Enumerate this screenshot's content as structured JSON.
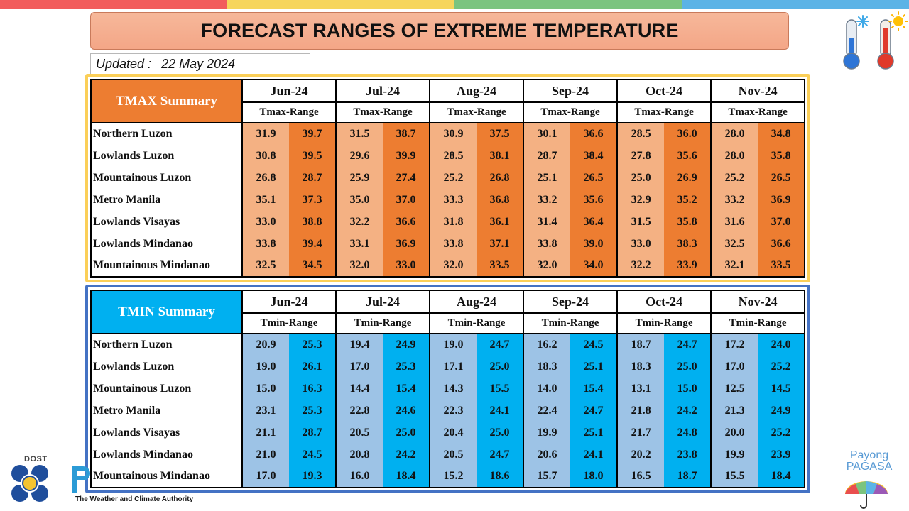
{
  "topbar_colors": [
    "#f25c5c",
    "#f6d55c",
    "#7bc47f",
    "#5bb3e6"
  ],
  "title": "FORECAST RANGES OF EXTREME TEMPERATURE",
  "updated": {
    "label": "Updated :",
    "date": "22 May 2024"
  },
  "months": [
    "Jun-24",
    "Jul-24",
    "Aug-24",
    "Sep-24",
    "Oct-24",
    "Nov-24"
  ],
  "regions": [
    "Northern Luzon",
    "Lowlands Luzon",
    "Mountainous Luzon",
    "Metro Manila",
    "Lowlands Visayas",
    "Lowlands Mindanao",
    "Mountainous Mindanao"
  ],
  "tmax": {
    "summary_label": "TMAX Summary",
    "sub_label": "Tmax-Range",
    "colors": {
      "header": "#ed7d31",
      "low": "#f4b183",
      "high": "#ed7d31",
      "border": "#fbcf58"
    },
    "rows": [
      [
        [
          "31.9",
          "39.7"
        ],
        [
          "31.5",
          "38.7"
        ],
        [
          "30.9",
          "37.5"
        ],
        [
          "30.1",
          "36.6"
        ],
        [
          "28.5",
          "36.0"
        ],
        [
          "28.0",
          "34.8"
        ]
      ],
      [
        [
          "30.8",
          "39.5"
        ],
        [
          "29.6",
          "39.9"
        ],
        [
          "28.5",
          "38.1"
        ],
        [
          "28.7",
          "38.4"
        ],
        [
          "27.8",
          "35.6"
        ],
        [
          "28.0",
          "35.8"
        ]
      ],
      [
        [
          "26.8",
          "28.7"
        ],
        [
          "25.9",
          "27.4"
        ],
        [
          "25.2",
          "26.8"
        ],
        [
          "25.1",
          "26.5"
        ],
        [
          "25.0",
          "26.9"
        ],
        [
          "25.2",
          "26.5"
        ]
      ],
      [
        [
          "35.1",
          "37.3"
        ],
        [
          "35.0",
          "37.0"
        ],
        [
          "33.3",
          "36.8"
        ],
        [
          "33.2",
          "35.6"
        ],
        [
          "32.9",
          "35.2"
        ],
        [
          "33.2",
          "36.9"
        ]
      ],
      [
        [
          "33.0",
          "38.8"
        ],
        [
          "32.2",
          "36.6"
        ],
        [
          "31.8",
          "36.1"
        ],
        [
          "31.4",
          "36.4"
        ],
        [
          "31.5",
          "35.8"
        ],
        [
          "31.6",
          "37.0"
        ]
      ],
      [
        [
          "33.8",
          "39.4"
        ],
        [
          "33.1",
          "36.9"
        ],
        [
          "33.8",
          "37.1"
        ],
        [
          "33.8",
          "39.0"
        ],
        [
          "33.0",
          "38.3"
        ],
        [
          "32.5",
          "36.6"
        ]
      ],
      [
        [
          "32.5",
          "34.5"
        ],
        [
          "32.0",
          "33.0"
        ],
        [
          "32.0",
          "33.5"
        ],
        [
          "32.0",
          "34.0"
        ],
        [
          "32.2",
          "33.9"
        ],
        [
          "32.1",
          "33.5"
        ]
      ]
    ]
  },
  "tmin": {
    "summary_label": "TMIN Summary",
    "sub_label": "Tmin-Range",
    "colors": {
      "header": "#00b0f0",
      "low": "#9dc3e6",
      "high": "#00b0f0",
      "border": "#4472c4"
    },
    "rows": [
      [
        [
          "20.9",
          "25.3"
        ],
        [
          "19.4",
          "24.9"
        ],
        [
          "19.0",
          "24.7"
        ],
        [
          "16.2",
          "24.5"
        ],
        [
          "18.7",
          "24.7"
        ],
        [
          "17.2",
          "24.0"
        ]
      ],
      [
        [
          "19.0",
          "26.1"
        ],
        [
          "17.0",
          "25.3"
        ],
        [
          "17.1",
          "25.0"
        ],
        [
          "18.3",
          "25.1"
        ],
        [
          "18.3",
          "25.0"
        ],
        [
          "17.0",
          "25.2"
        ]
      ],
      [
        [
          "15.0",
          "16.3"
        ],
        [
          "14.4",
          "15.4"
        ],
        [
          "14.3",
          "15.5"
        ],
        [
          "14.0",
          "15.4"
        ],
        [
          "13.1",
          "15.0"
        ],
        [
          "12.5",
          "14.5"
        ]
      ],
      [
        [
          "23.1",
          "25.3"
        ],
        [
          "22.8",
          "24.6"
        ],
        [
          "22.3",
          "24.1"
        ],
        [
          "22.4",
          "24.7"
        ],
        [
          "21.8",
          "24.2"
        ],
        [
          "21.3",
          "24.9"
        ]
      ],
      [
        [
          "21.1",
          "28.7"
        ],
        [
          "20.5",
          "25.0"
        ],
        [
          "20.4",
          "25.0"
        ],
        [
          "19.9",
          "25.1"
        ],
        [
          "21.7",
          "24.8"
        ],
        [
          "20.0",
          "25.2"
        ]
      ],
      [
        [
          "21.0",
          "24.5"
        ],
        [
          "20.8",
          "24.2"
        ],
        [
          "20.5",
          "24.7"
        ],
        [
          "20.6",
          "24.1"
        ],
        [
          "20.2",
          "23.8"
        ],
        [
          "19.9",
          "23.9"
        ]
      ],
      [
        [
          "17.0",
          "19.3"
        ],
        [
          "16.0",
          "18.4"
        ],
        [
          "15.2",
          "18.6"
        ],
        [
          "15.7",
          "18.0"
        ],
        [
          "16.5",
          "18.7"
        ],
        [
          "15.5",
          "18.4"
        ]
      ]
    ]
  },
  "footer": {
    "dost_label": "DOST",
    "authority_text": "The Weather and Climate Authority",
    "payong_line1": "Payong",
    "payong_line2": "PAGASA"
  },
  "icons": {
    "thermometer_cold": "thermometer-cold-icon",
    "thermometer_hot": "thermometer-hot-icon",
    "dost_logo": "dost-logo-icon",
    "umbrella": "umbrella-icon"
  }
}
